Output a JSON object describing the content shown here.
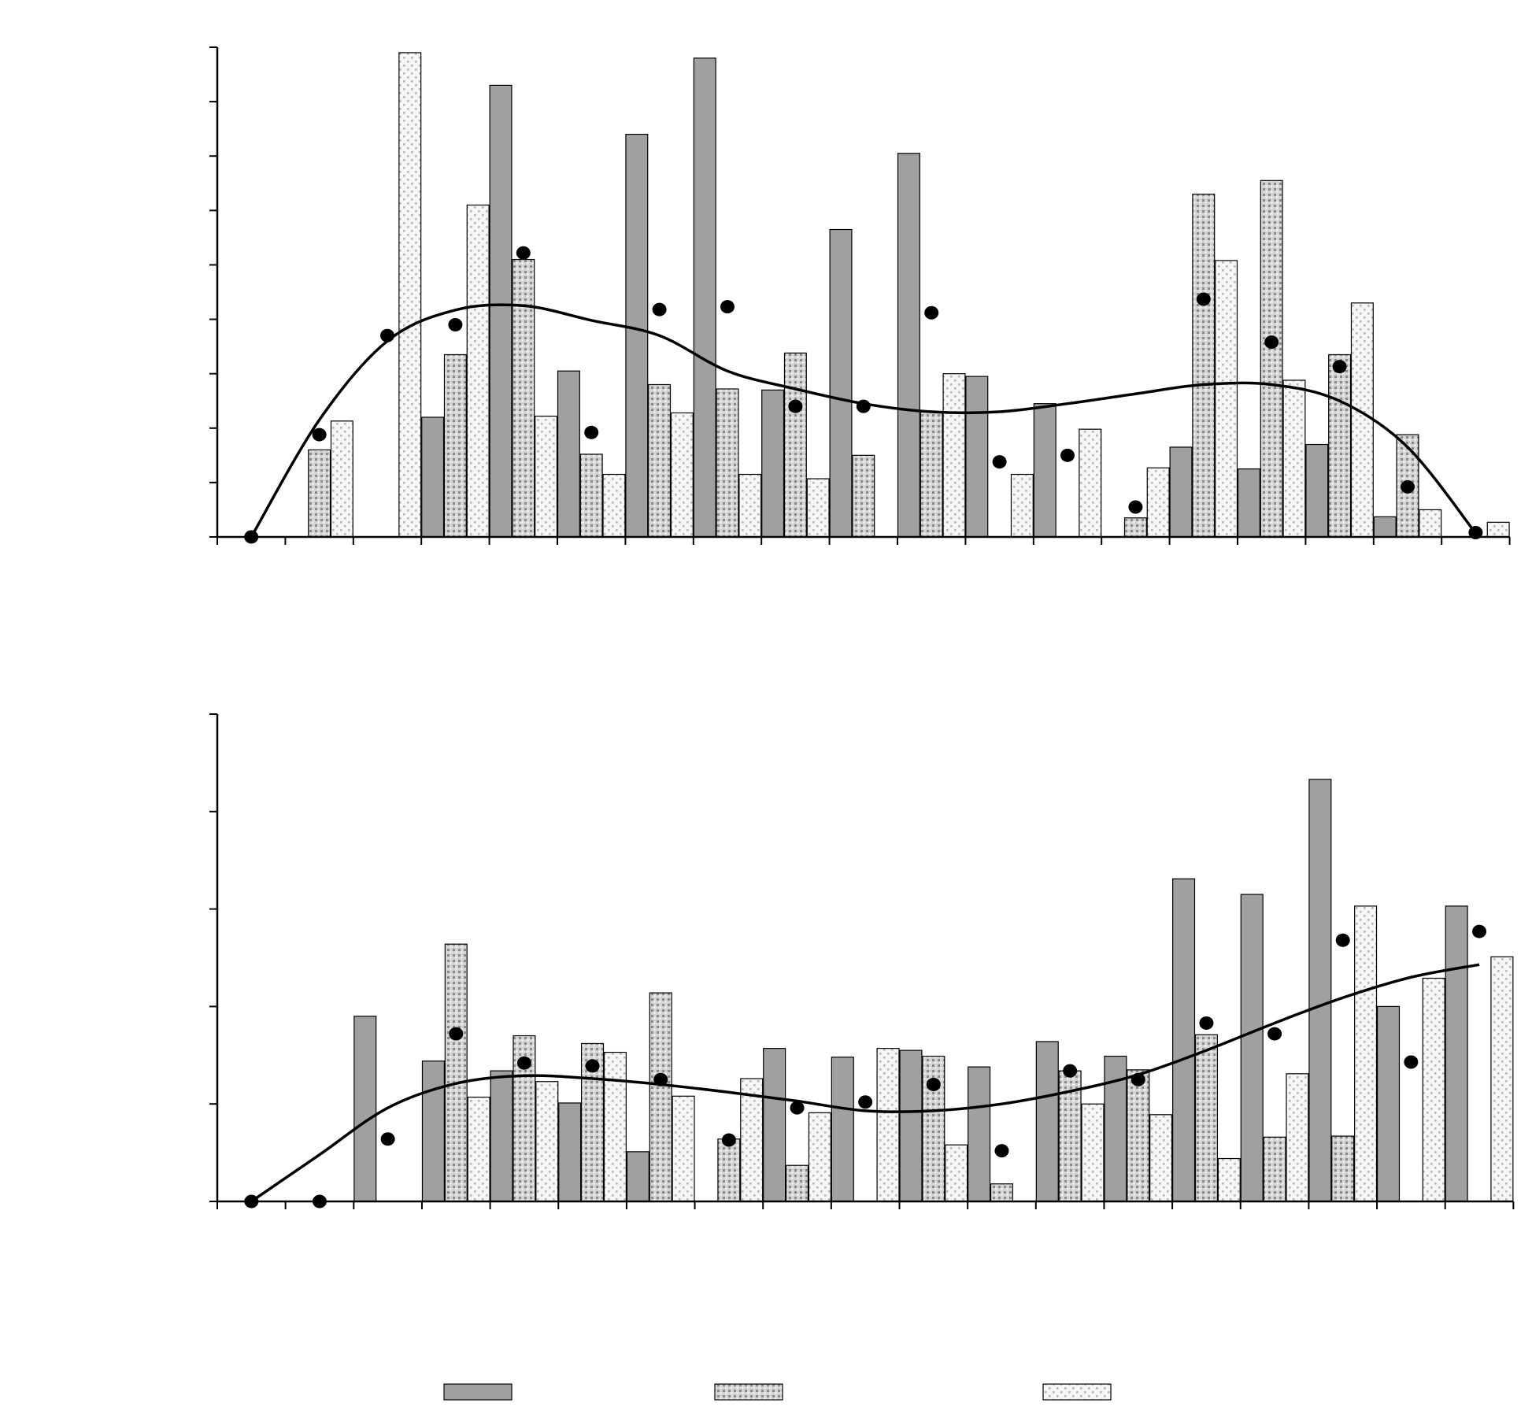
{
  "chart_data": [
    {
      "type": "bar",
      "panel": "top",
      "title": "",
      "xlabel": "",
      "ylabel": "",
      "ylim": [
        0,
        9
      ],
      "x_slots": 19,
      "yticks": [
        0,
        1,
        2,
        3,
        4,
        5,
        6,
        7,
        8,
        9
      ],
      "grid": false,
      "series": [
        {
          "kind": "bar",
          "pattern": "solid",
          "fill": "#a0a0a0",
          "values": [
            null,
            null,
            0,
            2.2,
            8.3,
            3.05,
            7.4,
            8.8,
            2.7,
            5.65,
            7.05,
            2.95,
            2.45,
            null,
            1.65,
            1.25,
            1.7,
            0.37,
            null
          ]
        },
        {
          "kind": "bar",
          "pattern": "dense-dots",
          "fill": "#d8d8d8",
          "values": [
            null,
            1.6,
            0,
            3.35,
            5.1,
            1.52,
            2.8,
            2.72,
            3.38,
            1.5,
            2.3,
            null,
            null,
            0.35,
            6.3,
            6.55,
            3.35,
            1.88,
            null
          ]
        },
        {
          "kind": "bar",
          "pattern": "sparse-dots",
          "fill": "#f4f4f4",
          "values": [
            null,
            2.13,
            8.9,
            6.1,
            2.22,
            1.15,
            2.28,
            1.15,
            1.07,
            null,
            3.0,
            1.15,
            1.98,
            1.27,
            5.08,
            2.88,
            4.3,
            0.5,
            0.27
          ]
        },
        {
          "kind": "scatter",
          "marker": "filled-circle",
          "color": "#000000",
          "values": [
            0,
            1.88,
            3.7,
            3.9,
            5.22,
            1.92,
            4.18,
            4.23,
            2.4,
            2.4,
            4.12,
            1.38,
            1.5,
            0.55,
            4.37,
            3.58,
            3.13,
            0.92,
            0.08
          ]
        },
        {
          "kind": "line",
          "smooth": true,
          "color": "#000000",
          "values": [
            0,
            2.15,
            3.6,
            4.17,
            4.25,
            3.98,
            3.7,
            3.05,
            2.72,
            2.45,
            2.3,
            2.3,
            2.45,
            2.63,
            2.8,
            2.8,
            2.5,
            1.65,
            0.07
          ]
        }
      ]
    },
    {
      "type": "bar",
      "panel": "bottom",
      "title": "",
      "xlabel": "",
      "ylabel": "",
      "ylim": [
        0,
        5
      ],
      "x_slots": 19,
      "yticks": [
        0,
        1,
        2,
        3,
        4,
        5
      ],
      "grid": false,
      "series": [
        {
          "kind": "bar",
          "pattern": "solid",
          "fill": "#a0a0a0",
          "values": [
            null,
            0,
            1.9,
            1.44,
            1.34,
            1.01,
            0.51,
            null,
            1.57,
            1.48,
            1.55,
            1.38,
            1.64,
            1.49,
            3.31,
            3.15,
            4.33,
            2.0,
            3.03
          ]
        },
        {
          "kind": "bar",
          "pattern": "dense-dots",
          "fill": "#d8d8d8",
          "values": [
            null,
            null,
            null,
            2.64,
            1.7,
            1.62,
            2.14,
            0.64,
            0.37,
            null,
            1.49,
            0.18,
            1.34,
            1.35,
            1.71,
            0.66,
            0.67,
            null,
            null
          ]
        },
        {
          "kind": "bar",
          "pattern": "sparse-dots",
          "fill": "#f4f4f4",
          "values": [
            null,
            null,
            null,
            1.07,
            1.23,
            1.53,
            1.08,
            1.26,
            0.91,
            1.57,
            0.58,
            null,
            1.0,
            0.89,
            0.44,
            1.31,
            3.03,
            2.29,
            2.51
          ]
        },
        {
          "kind": "scatter",
          "marker": "filled-circle",
          "color": "#000000",
          "values": [
            0,
            0,
            0.64,
            1.72,
            1.42,
            1.39,
            1.25,
            0.63,
            0.96,
            1.02,
            1.2,
            0.52,
            1.34,
            1.25,
            1.83,
            1.72,
            2.68,
            1.43,
            2.77
          ]
        },
        {
          "kind": "line",
          "smooth": true,
          "color": "#000000",
          "values": [
            0,
            0.48,
            0.96,
            1.21,
            1.29,
            1.26,
            1.2,
            1.12,
            1.03,
            0.93,
            0.93,
            1.0,
            1.13,
            1.3,
            1.55,
            1.83,
            2.09,
            2.3,
            2.43
          ]
        }
      ]
    }
  ],
  "legend": {
    "placement": "bottom",
    "entries": [
      {
        "pattern": "solid",
        "label": ""
      },
      {
        "pattern": "dense-dots",
        "label": ""
      },
      {
        "pattern": "sparse-dots",
        "label": ""
      }
    ]
  }
}
